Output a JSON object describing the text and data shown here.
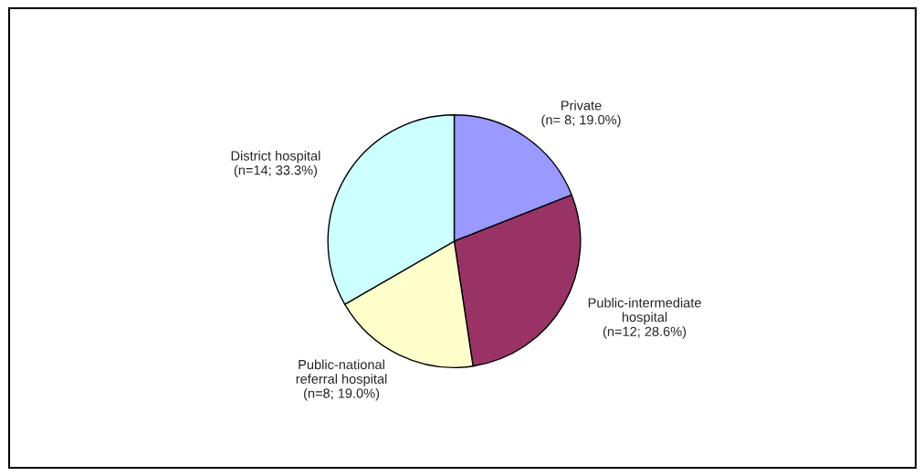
{
  "chart_data": {
    "type": "pie",
    "categories": [
      "Private",
      "Public-intermediate\nhospital",
      "Public-national\nreferral hospital",
      "District hospital"
    ],
    "values": [
      8,
      12,
      8,
      14
    ],
    "value_labels": [
      "(n= 8; 19.0%)",
      "(n=12; 28.6%)",
      "(n=8; 19.0%)",
      "(n=14; 33.3%)"
    ],
    "colors": [
      "#9999ff",
      "#993366",
      "#ffffcc",
      "#ccffff"
    ]
  }
}
